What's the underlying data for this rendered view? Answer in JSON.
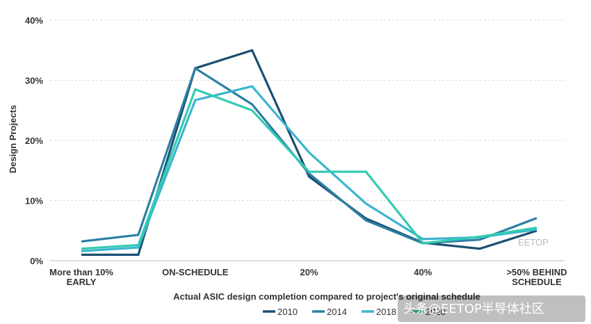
{
  "chart_data": {
    "type": "line",
    "title": "",
    "xlabel": "Actual ASIC design completion compared to project's original schedule",
    "ylabel": "Design Projects",
    "ylim": [
      0,
      40
    ],
    "yticks": [
      "0%",
      "10%",
      "20%",
      "30%",
      "40%"
    ],
    "ytick_values": [
      0,
      10,
      20,
      30,
      40
    ],
    "grid": true,
    "legend_position": "bottom",
    "categories": [
      "More than 10% EARLY",
      "",
      "ON-SCHEDULE",
      "",
      "20%",
      "",
      "40%",
      "",
      ">50% BEHIND SCHEDULE"
    ],
    "xtick_labels": [
      [
        "More than 10%",
        "EARLY"
      ],
      [
        ""
      ],
      [
        "ON-SCHEDULE"
      ],
      [
        ""
      ],
      [
        "20%"
      ],
      [
        ""
      ],
      [
        "40%"
      ],
      [
        ""
      ],
      [
        ">50% BEHIND",
        "SCHEDULE"
      ]
    ],
    "series": [
      {
        "name": "2010",
        "color": "#1b4f72",
        "values": [
          1,
          1,
          32,
          35,
          14,
          7,
          3,
          2,
          5
        ]
      },
      {
        "name": "2014",
        "color": "#2c7fa3",
        "values": [
          3.2,
          4.3,
          32,
          26,
          14.5,
          6.7,
          2.9,
          3.5,
          7.1
        ]
      },
      {
        "name": "2018",
        "color": "#3ab5cf",
        "values": [
          1.6,
          2.2,
          26.7,
          29,
          18,
          9.5,
          3.6,
          3.9,
          5.2
        ]
      },
      {
        "name": "2020",
        "color": "#33cbb0",
        "values": [
          2,
          2.6,
          28.5,
          25,
          14.8,
          14.8,
          2.9,
          4,
          5.5
        ]
      }
    ]
  },
  "watermark": {
    "text": "头条@EETOP半导体社区",
    "small_text": "EETOP"
  }
}
